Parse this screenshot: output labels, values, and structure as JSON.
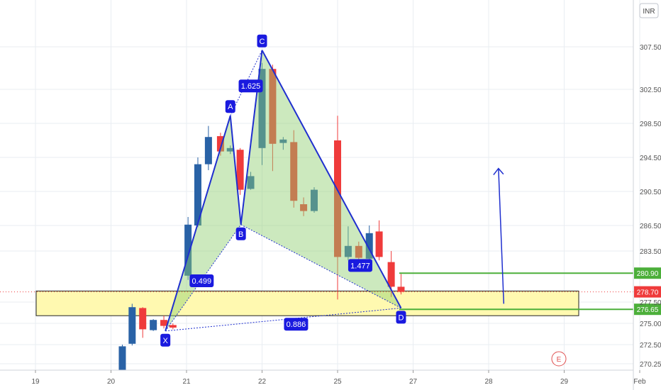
{
  "currency_badge": "INR",
  "event_marker": "E",
  "colors": {
    "up": "#2962a6",
    "down": "#ef3b3b",
    "pattern_line": "#1f2fcf",
    "pattern_fill": "#8fcf6f",
    "support_zone_fill": "#fff9b0",
    "support_zone_border": "#222222",
    "level_line": "#4caf3a",
    "label_bg": "#1a1adf",
    "grid": "#e9edf2",
    "axis_text": "#555555"
  },
  "chart_data": {
    "type": "candlestick",
    "x_axis": {
      "tick_labels": [
        "19",
        "20",
        "21",
        "22",
        "25",
        "27",
        "28",
        "29",
        "Feb"
      ],
      "tick_positions_days": [
        0,
        1,
        2,
        3,
        4,
        5,
        6,
        7,
        8
      ]
    },
    "y_axis": {
      "ylim": [
        269.5,
        313.0
      ],
      "tick_labels": [
        "270.25",
        "272.50",
        "275.00",
        "277.50",
        "283.50",
        "286.50",
        "290.50",
        "294.50",
        "298.50",
        "302.50",
        "307.50"
      ],
      "tick_values": [
        270.25,
        272.5,
        275.0,
        277.5,
        283.5,
        286.5,
        290.5,
        294.5,
        298.5,
        302.5,
        307.5
      ]
    },
    "candles": [
      {
        "t": 1.15,
        "o": 269.5,
        "h": 272.5,
        "l": 269.5,
        "c": 272.3
      },
      {
        "t": 1.28,
        "o": 272.6,
        "h": 277.3,
        "l": 272.4,
        "c": 276.9
      },
      {
        "t": 1.42,
        "o": 276.8,
        "h": 276.9,
        "l": 273.3,
        "c": 274.3
      },
      {
        "t": 1.56,
        "o": 274.2,
        "h": 275.5,
        "l": 274.1,
        "c": 275.4
      },
      {
        "t": 1.7,
        "o": 275.4,
        "h": 275.9,
        "l": 274.4,
        "c": 274.7
      },
      {
        "t": 1.82,
        "o": 274.8,
        "h": 275.0,
        "l": 274.3,
        "c": 274.5
      },
      {
        "t": 2.02,
        "o": 280.6,
        "h": 287.5,
        "l": 280.1,
        "c": 286.6
      },
      {
        "t": 2.15,
        "o": 286.5,
        "h": 294.5,
        "l": 286.3,
        "c": 293.7
      },
      {
        "t": 2.29,
        "o": 293.7,
        "h": 298.2,
        "l": 293.0,
        "c": 296.9
      },
      {
        "t": 2.45,
        "o": 297.0,
        "h": 297.4,
        "l": 294.7,
        "c": 295.2
      },
      {
        "t": 2.58,
        "o": 295.2,
        "h": 295.9,
        "l": 294.9,
        "c": 295.6
      },
      {
        "t": 2.71,
        "o": 295.4,
        "h": 295.6,
        "l": 290.1,
        "c": 290.7
      },
      {
        "t": 2.85,
        "o": 290.8,
        "h": 292.8,
        "l": 290.7,
        "c": 292.3
      },
      {
        "t": 3.0,
        "o": 295.6,
        "h": 305.6,
        "l": 293.6,
        "c": 304.9
      },
      {
        "t": 3.14,
        "o": 304.9,
        "h": 305.4,
        "l": 292.9,
        "c": 296.1
      },
      {
        "t": 3.28,
        "o": 296.2,
        "h": 296.9,
        "l": 295.4,
        "c": 296.6
      },
      {
        "t": 3.42,
        "o": 296.3,
        "h": 297.7,
        "l": 288.6,
        "c": 289.4
      },
      {
        "t": 3.55,
        "o": 289.0,
        "h": 289.8,
        "l": 287.6,
        "c": 288.2
      },
      {
        "t": 3.69,
        "o": 288.2,
        "h": 291.0,
        "l": 288.0,
        "c": 290.7
      },
      {
        "t": 4.0,
        "o": 296.5,
        "h": 299.4,
        "l": 277.8,
        "c": 282.8
      },
      {
        "t": 4.14,
        "o": 282.8,
        "h": 286.4,
        "l": 282.4,
        "c": 284.1
      },
      {
        "t": 4.28,
        "o": 284.1,
        "h": 284.6,
        "l": 281.6,
        "c": 282.7
      },
      {
        "t": 4.42,
        "o": 282.6,
        "h": 286.5,
        "l": 282.5,
        "c": 285.6
      },
      {
        "t": 4.55,
        "o": 285.8,
        "h": 287.1,
        "l": 282.4,
        "c": 282.8
      },
      {
        "t": 4.71,
        "o": 282.2,
        "h": 283.5,
        "l": 278.1,
        "c": 279.3
      },
      {
        "t": 4.84,
        "o": 279.3,
        "h": 280.8,
        "l": 278.4,
        "c": 278.7
      }
    ],
    "harmonic_pattern": {
      "points": [
        {
          "name": "X",
          "t": 1.72,
          "price": 274.1
        },
        {
          "name": "A",
          "t": 2.58,
          "price": 299.4
        },
        {
          "name": "B",
          "t": 2.72,
          "price": 286.6
        },
        {
          "name": "C",
          "t": 3.0,
          "price": 307.1
        },
        {
          "name": "D",
          "t": 4.84,
          "price": 276.8
        }
      ],
      "ratios": [
        {
          "label": "0.499",
          "t": 2.2,
          "price": 280.0
        },
        {
          "label": "1.625",
          "t": 2.85,
          "price": 302.9
        },
        {
          "label": "1.477",
          "t": 4.3,
          "price": 281.8
        },
        {
          "label": "0.886",
          "t": 3.45,
          "price": 274.9
        }
      ]
    },
    "support_zone": {
      "price_low": 275.9,
      "price_high": 278.8
    },
    "levels": [
      {
        "label": "280.90",
        "price": 280.9
      },
      {
        "label": "278.70",
        "price": 278.7
      },
      {
        "label": "276.65",
        "price": 276.65
      }
    ],
    "projection_arrow": {
      "from": {
        "t": 6.2,
        "price": 277.3
      },
      "to": {
        "t": 6.13,
        "price": 293.2
      }
    }
  }
}
